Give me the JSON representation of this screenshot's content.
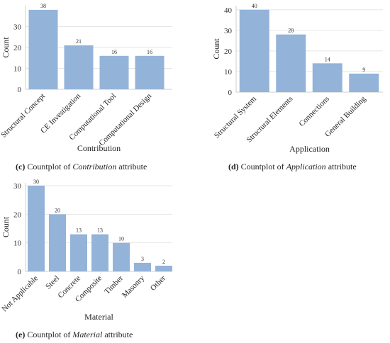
{
  "bar_color": "#94b3d9",
  "captions": [
    {
      "label": "(c)",
      "pre": "Countplot of ",
      "italic": "Contribution",
      "post": " attribute"
    },
    {
      "label": "(d)",
      "pre": "Countplot of ",
      "italic": "Application",
      "post": " attribute"
    },
    {
      "label": "(e)",
      "pre": "Countplot of ",
      "italic": "Material",
      "post": " attribute"
    }
  ],
  "chart_data": [
    {
      "type": "bar",
      "title": "",
      "xlabel": "Contribution",
      "ylabel": "Count",
      "categories": [
        "Structural Concept",
        "CE Investigation",
        "Computational Tool",
        "Computational Design"
      ],
      "values": [
        38,
        21,
        16,
        16
      ],
      "yticks": [
        0,
        10,
        20,
        30
      ],
      "ylim": [
        0,
        40
      ],
      "grid": true
    },
    {
      "type": "bar",
      "title": "",
      "xlabel": "Application",
      "ylabel": "Count",
      "categories": [
        "Structural System",
        "Structural Elements",
        "Connections",
        "General Building"
      ],
      "values": [
        40,
        28,
        14,
        9
      ],
      "yticks": [
        0,
        10,
        20,
        30,
        40
      ],
      "ylim": [
        0,
        42
      ],
      "grid": true
    },
    {
      "type": "bar",
      "title": "",
      "xlabel": "Material",
      "ylabel": "Count",
      "categories": [
        "Not Applicable",
        "Steel",
        "Concrete",
        "Composite",
        "Timber",
        "Masonry",
        "Other"
      ],
      "values": [
        30,
        20,
        13,
        13,
        10,
        3,
        2
      ],
      "yticks": [
        0,
        10,
        20,
        30
      ],
      "ylim": [
        0,
        31
      ],
      "grid": true
    }
  ]
}
